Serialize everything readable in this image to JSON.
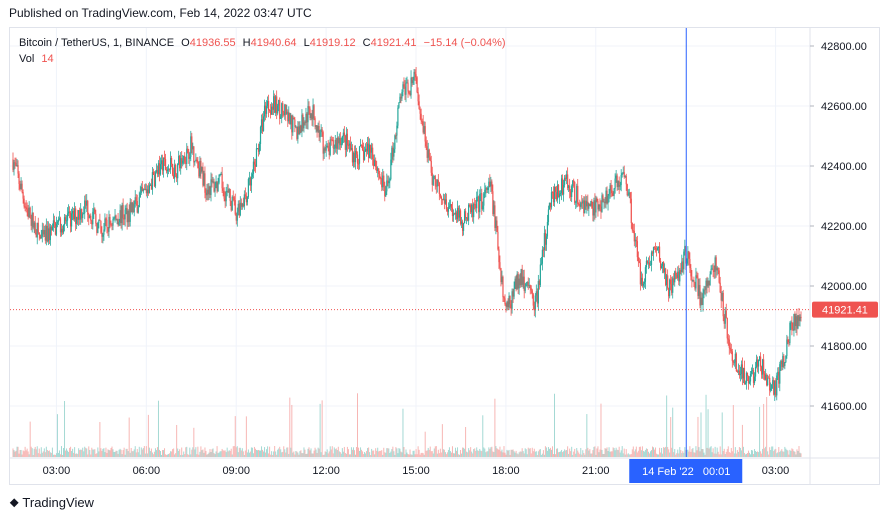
{
  "published": "Published on TradingView.com, Feb 14, 2022 03:47 UTC",
  "footer_brand": "TradingView",
  "legend": {
    "symbol": "Bitcoin / TetherUS, 1, BINANCE",
    "o_label": "O",
    "o_value": "41936.55",
    "h_label": "H",
    "h_value": "41940.64",
    "l_label": "L",
    "l_value": "41919.12",
    "c_label": "C",
    "c_value": "41921.41",
    "change": "−15.14 (−0.04%)",
    "vol_label": "Vol",
    "vol_value": "14"
  },
  "colors": {
    "up": "#26a69a",
    "down": "#ef5350",
    "crosshair": "#2962ff",
    "grid": "#f0f3fa"
  },
  "chart_data": {
    "type": "line",
    "title": "Bitcoin / TetherUS, 1, BINANCE",
    "y_ticks": [
      42800,
      42600,
      42400,
      42200,
      42000,
      41800,
      41600
    ],
    "y_tick_labels": [
      "42800.00",
      "42600.00",
      "42400.00",
      "42200.00",
      "42000.00",
      "41800.00",
      "41600.00"
    ],
    "ylim": [
      41430,
      42860
    ],
    "x_ticks": [
      {
        "label": "03:00",
        "hours": 3
      },
      {
        "label": "06:00",
        "hours": 6
      },
      {
        "label": "09:00",
        "hours": 9
      },
      {
        "label": "12:00",
        "hours": 12
      },
      {
        "label": "15:00",
        "hours": 15
      },
      {
        "label": "18:00",
        "hours": 18
      },
      {
        "label": "21:00",
        "hours": 21
      },
      {
        "label": "03:00",
        "hours": 27
      }
    ],
    "xlim_hours": [
      1.45,
      28.15
    ],
    "last_price": 41921.41,
    "last_price_label": "41921.41",
    "crosshair_label": "14 Feb '22   00:01",
    "crosshair_hours": 24.02,
    "series": [
      {
        "hours": [
          1.5,
          2.0,
          2.5,
          3.0,
          3.5,
          4.0,
          4.5,
          5.0,
          5.5,
          6.0,
          6.5,
          7.0,
          7.5,
          8.0,
          8.5,
          9.0,
          9.5,
          10.0,
          10.5,
          11.0,
          11.5,
          12.0,
          12.5,
          13.0,
          13.5,
          14.0,
          14.5,
          15.0,
          15.5,
          16.0,
          16.5,
          17.0,
          17.5,
          18.0,
          18.5,
          19.0,
          19.5,
          20.0,
          20.5,
          21.0,
          21.5,
          22.0,
          22.5,
          23.0,
          23.5,
          24.0,
          24.5,
          25.0,
          25.5,
          26.0,
          26.5,
          27.0,
          27.5,
          28.0
        ],
        "price": [
          42440,
          42260,
          42150,
          42200,
          42220,
          42270,
          42180,
          42230,
          42250,
          42320,
          42400,
          42390,
          42470,
          42330,
          42340,
          42250,
          42340,
          42610,
          42590,
          42510,
          42590,
          42440,
          42500,
          42430,
          42460,
          42300,
          42640,
          42690,
          42370,
          42290,
          42210,
          42260,
          42330,
          41910,
          42040,
          41940,
          42300,
          42350,
          42280,
          42260,
          42320,
          42370,
          42020,
          42130,
          41980,
          42110,
          41960,
          42080,
          41780,
          41680,
          41740,
          41650,
          41860,
          41920
        ]
      }
    ]
  }
}
